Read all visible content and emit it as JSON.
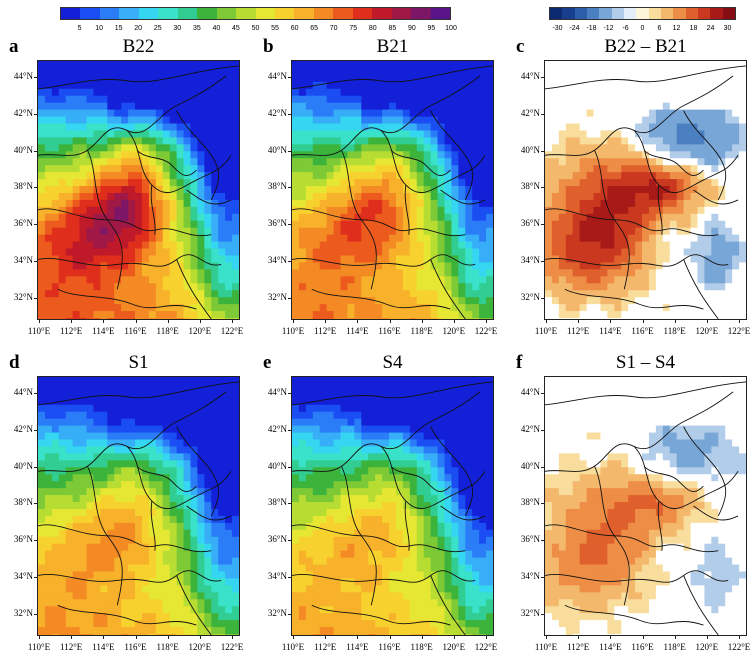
{
  "colorbar_main": {
    "ticks": [
      "5",
      "10",
      "15",
      "20",
      "25",
      "30",
      "35",
      "40",
      "45",
      "50",
      "55",
      "60",
      "65",
      "70",
      "75",
      "80",
      "85",
      "90",
      "95",
      "100"
    ],
    "colors": [
      "#1320d8",
      "#1a4ef2",
      "#2a7df7",
      "#37aef7",
      "#35d6f2",
      "#39e2c8",
      "#31cd92",
      "#3cb43c",
      "#7dc936",
      "#b7dd33",
      "#e5e733",
      "#f7d22e",
      "#f7b12a",
      "#f48a24",
      "#ec5a1e",
      "#df2e1c",
      "#c01a2a",
      "#a01845",
      "#7d1666",
      "#5a148a"
    ]
  },
  "colorbar_diff": {
    "ticks": [
      "-30",
      "-24",
      "-18",
      "-12",
      "-6",
      "0",
      "6",
      "12",
      "18",
      "24",
      "30"
    ],
    "colors": [
      "#0b2a6f",
      "#173f8e",
      "#2b5ea8",
      "#4a80c1",
      "#78a6d6",
      "#b2cdea",
      "#e3eef8",
      "#fdf6d9",
      "#f9dd9c",
      "#f4b86c",
      "#ee8d45",
      "#e0602d",
      "#c9381f",
      "#a81a18",
      "#850d13"
    ]
  },
  "panels": [
    {
      "letter": "a",
      "title": "B22",
      "kind": "abs",
      "variant": 1.0
    },
    {
      "letter": "b",
      "title": "B21",
      "kind": "abs",
      "variant": 0.78
    },
    {
      "letter": "c",
      "title": "B22 – B21",
      "kind": "diff",
      "variant": 1.0
    },
    {
      "letter": "d",
      "title": "S1",
      "kind": "abs",
      "variant": 0.62
    },
    {
      "letter": "e",
      "title": "S4",
      "kind": "abs",
      "variant": 0.55
    },
    {
      "letter": "f",
      "title": "S1 – S4",
      "kind": "diff",
      "variant": 0.6
    }
  ],
  "lat_labels": [
    "44°N",
    "42°N",
    "40°N",
    "38°N",
    "36°N",
    "34°N",
    "32°N"
  ],
  "lon_labels": [
    "110°E",
    "112°E",
    "114°E",
    "116°E",
    "118°E",
    "120°E",
    "122°E"
  ]
}
